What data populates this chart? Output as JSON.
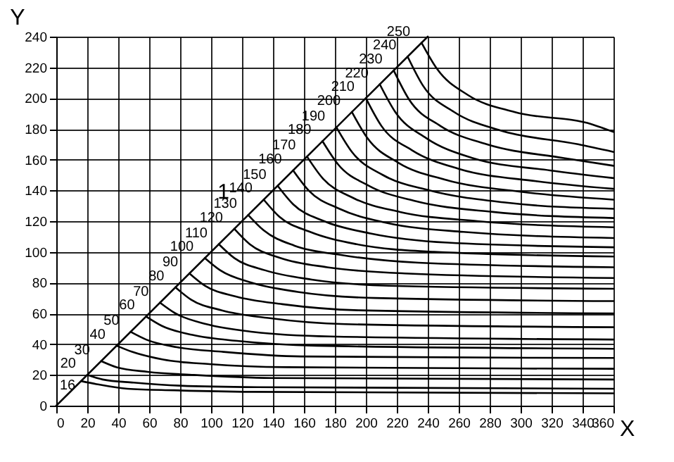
{
  "chart_data": {
    "type": "line",
    "xlabel": "X",
    "ylabel": "Y",
    "xlim": [
      0,
      360
    ],
    "ylim": [
      0,
      240
    ],
    "xticks": [
      0,
      20,
      40,
      60,
      80,
      100,
      120,
      140,
      160,
      180,
      200,
      220,
      240,
      260,
      280,
      300,
      320,
      340,
      360
    ],
    "yticks": [
      0,
      20,
      40,
      60,
      80,
      100,
      120,
      140,
      160,
      180,
      200,
      220,
      240
    ],
    "grid": true,
    "marker": "none",
    "line_style": "solid",
    "annotations": [
      "1"
    ],
    "series": [
      {
        "color": "#000000",
        "x": [
          0,
          240
        ],
        "values": [
          0,
          240
        ]
      },
      {
        "name": "16",
        "color": "#000000",
        "x": [
          16,
          26,
          46,
          76,
          126,
          360
        ],
        "values": [
          16,
          14,
          11,
          10,
          9,
          8
        ]
      },
      {
        "name": "20",
        "color": "#000000",
        "x": [
          20,
          30,
          50,
          80,
          130,
          360
        ],
        "values": [
          20,
          17,
          15,
          13,
          12,
          11
        ]
      },
      {
        "name": "30",
        "color": "#000000",
        "x": [
          29,
          39,
          59,
          89,
          139,
          360
        ],
        "values": [
          29,
          25,
          22,
          20,
          18,
          17
        ]
      },
      {
        "name": "40",
        "color": "#000000",
        "x": [
          39,
          49,
          69,
          99,
          149,
          360
        ],
        "values": [
          39,
          35,
          30,
          27,
          25,
          24
        ]
      },
      {
        "name": "50",
        "color": "#000000",
        "x": [
          48,
          58,
          78,
          108,
          158,
          360
        ],
        "values": [
          48,
          43,
          38,
          35,
          32,
          31
        ]
      },
      {
        "name": "60",
        "color": "#000000",
        "x": [
          58,
          68,
          88,
          118,
          168,
          360
        ],
        "values": [
          58,
          52,
          46,
          42,
          39,
          37
        ]
      },
      {
        "name": "70",
        "color": "#000000",
        "x": [
          67,
          77,
          97,
          127,
          177,
          360
        ],
        "values": [
          67,
          60,
          53,
          48,
          45,
          43
        ]
      },
      {
        "name": "80",
        "color": "#000000",
        "x": [
          77,
          87,
          107,
          137,
          187,
          360
        ],
        "values": [
          77,
          69,
          62,
          57,
          53,
          51
        ]
      },
      {
        "name": "90",
        "color": "#000000",
        "x": [
          86,
          96,
          116,
          146,
          196,
          360
        ],
        "values": [
          86,
          78,
          71,
          66,
          62,
          60
        ]
      },
      {
        "name": "100",
        "color": "#000000",
        "x": [
          96,
          106,
          126,
          156,
          206,
          360
        ],
        "values": [
          96,
          88,
          80,
          74,
          70,
          68
        ]
      },
      {
        "name": "110",
        "color": "#000000",
        "x": [
          105,
          115,
          135,
          165,
          215,
          360
        ],
        "values": [
          105,
          96,
          88,
          82,
          78,
          76
        ]
      },
      {
        "name": "120",
        "color": "#000000",
        "x": [
          115,
          125,
          145,
          175,
          225,
          360
        ],
        "values": [
          115,
          105,
          96,
          90,
          86,
          83
        ]
      },
      {
        "name": "130",
        "color": "#000000",
        "x": [
          124,
          134,
          154,
          184,
          234,
          360
        ],
        "values": [
          124,
          114,
          104,
          98,
          93,
          90
        ]
      },
      {
        "name": "140",
        "color": "#000000",
        "x": [
          134,
          144,
          164,
          194,
          244,
          360
        ],
        "values": [
          134,
          123,
          113,
          105,
          100,
          97
        ]
      },
      {
        "name": "150",
        "color": "#000000",
        "x": [
          143,
          153,
          173,
          203,
          253,
          360
        ],
        "values": [
          143,
          131,
          120,
          112,
          106,
          103
        ]
      },
      {
        "name": "160",
        "color": "#000000",
        "x": [
          153,
          163,
          183,
          213,
          263,
          360
        ],
        "values": [
          153,
          140,
          128,
          119,
          113,
          109
        ]
      },
      {
        "name": "170",
        "color": "#000000",
        "x": [
          162,
          172,
          192,
          222,
          272,
          360
        ],
        "values": [
          162,
          148,
          135,
          126,
          120,
          116
        ]
      },
      {
        "name": "180",
        "color": "#000000",
        "x": [
          172,
          182,
          202,
          232,
          282,
          360
        ],
        "values": [
          172,
          157,
          143,
          133,
          126,
          122
        ]
      },
      {
        "name": "190",
        "color": "#000000",
        "x": [
          181,
          191,
          211,
          241,
          291,
          360
        ],
        "values": [
          181,
          165,
          150,
          140,
          132,
          128
        ]
      },
      {
        "name": "200",
        "color": "#000000",
        "x": [
          191,
          201,
          221,
          251,
          301,
          360
        ],
        "values": [
          191,
          174,
          158,
          147,
          139,
          134
        ]
      },
      {
        "name": "210",
        "color": "#000000",
        "x": [
          200,
          210,
          230,
          260,
          310,
          360
        ],
        "values": [
          200,
          182,
          166,
          154,
          146,
          141
        ]
      },
      {
        "name": "220",
        "color": "#000000",
        "x": [
          209,
          219,
          239,
          269,
          319,
          360
        ],
        "values": [
          209,
          191,
          174,
          161,
          153,
          148
        ]
      },
      {
        "name": "230",
        "color": "#000000",
        "x": [
          218,
          228,
          248,
          278,
          328,
          360
        ],
        "values": [
          218,
          199,
          182,
          170,
          161,
          156
        ]
      },
      {
        "name": "240",
        "color": "#000000",
        "x": [
          227,
          237,
          257,
          287,
          337,
          360
        ],
        "values": [
          227,
          208,
          191,
          179,
          170,
          165
        ]
      },
      {
        "name": "250",
        "color": "#000000",
        "x": [
          236,
          246,
          266,
          296,
          346,
          360
        ],
        "values": [
          236,
          219,
          202,
          191,
          183,
          178
        ]
      }
    ]
  }
}
